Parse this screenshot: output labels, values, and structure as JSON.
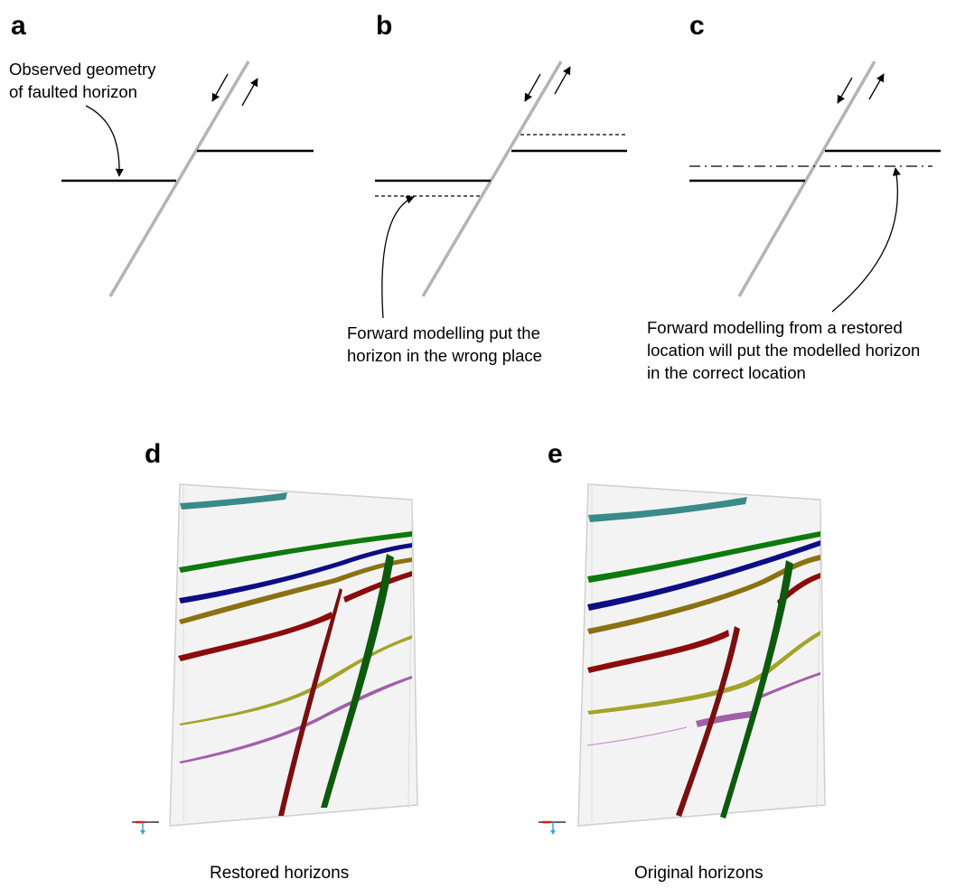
{
  "panels": {
    "a": {
      "letter": "a",
      "annotation": [
        "Observed geometry",
        "of faulted horizon"
      ]
    },
    "b": {
      "letter": "b",
      "annotation": [
        "Forward modelling put the",
        "horizon in the wrong place"
      ]
    },
    "c": {
      "letter": "c",
      "annotation": [
        "Forward modelling from a restored",
        "location will put the modelled horizon",
        "in the correct location"
      ]
    },
    "d": {
      "letter": "d",
      "caption": "Restored horizons"
    },
    "e": {
      "letter": "e",
      "caption": "Original horizons"
    }
  },
  "colors": {
    "fault": "#b4b4b4",
    "horizon": "#000000",
    "teal": "#3a8a8a",
    "green": "#0c7a0c",
    "blue": "#0d0d85",
    "olive": "#8a7212",
    "red": "#8c0b0b",
    "yellow_green": "#a3a32a",
    "purple": "#a060a8",
    "fault_red": "#7a0f0f",
    "fault_green": "#0d5a0d",
    "box_face": "#f3f3f3",
    "box_edge": "#cfcfcf"
  }
}
